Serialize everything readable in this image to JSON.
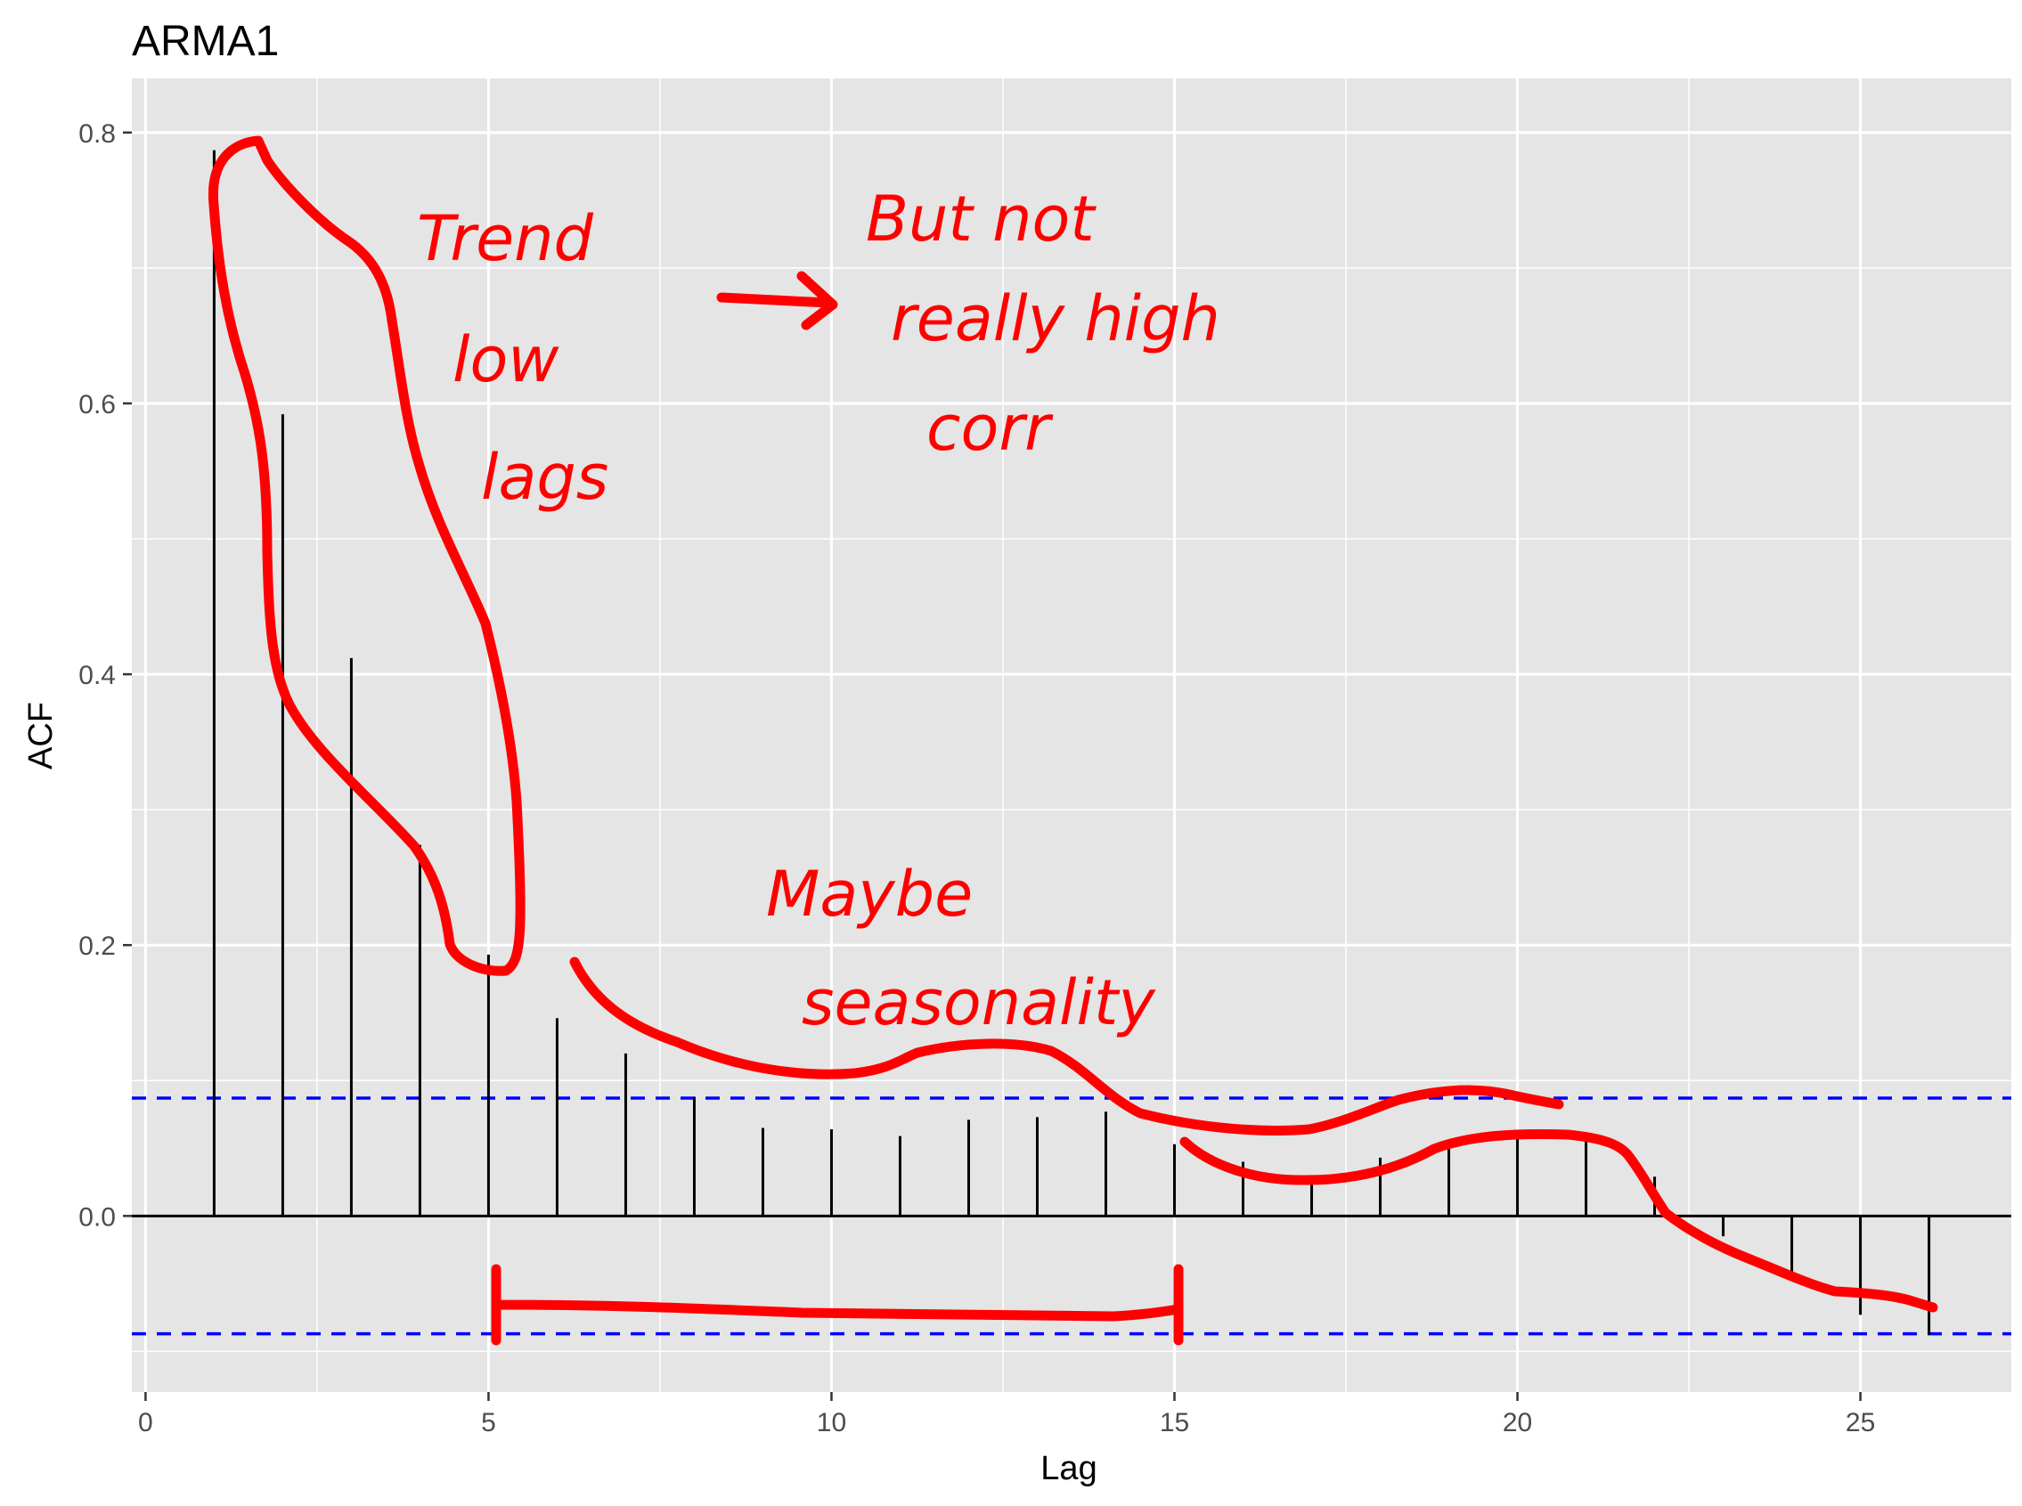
{
  "chart_data": {
    "type": "bar",
    "title": "ARMA1",
    "xlabel": "Lag",
    "ylabel": "ACF",
    "xlim": [
      -0.2,
      27.2
    ],
    "ylim": [
      -0.13,
      0.84
    ],
    "xticks": [
      0,
      5,
      10,
      15,
      20,
      25
    ],
    "xtick_labels": [
      "0",
      "5",
      "10",
      "15",
      "20",
      "25"
    ],
    "yticks": [
      0.0,
      0.2,
      0.4,
      0.6,
      0.8
    ],
    "ytick_labels": [
      "0.0",
      "0.2",
      "0.4",
      "0.6",
      "0.8"
    ],
    "grid": true,
    "confidence_band": 0.087,
    "series": [
      {
        "x": [
          1,
          2,
          3,
          4,
          5,
          6,
          7,
          8,
          9,
          10,
          11,
          12,
          13,
          14,
          15,
          16,
          17,
          18,
          19,
          20,
          21,
          22,
          23,
          24,
          25,
          26
        ],
        "values": [
          0.787,
          0.592,
          0.412,
          0.274,
          0.193,
          0.146,
          0.12,
          0.088,
          0.065,
          0.064,
          0.059,
          0.071,
          0.073,
          0.077,
          0.053,
          0.04,
          0.027,
          0.043,
          0.055,
          0.059,
          0.059,
          0.029,
          -0.015,
          -0.045,
          -0.073,
          -0.088
        ]
      }
    ],
    "colors": {
      "panel": "#e5e5e5",
      "grid": "#ffffff",
      "bar": "#000000",
      "band": "#0000ff",
      "annotation": "#ff0000"
    }
  },
  "annotations": [
    "Trend",
    "low",
    "lags",
    "But not",
    "really high",
    "corr",
    "Maybe",
    "seasonality"
  ]
}
